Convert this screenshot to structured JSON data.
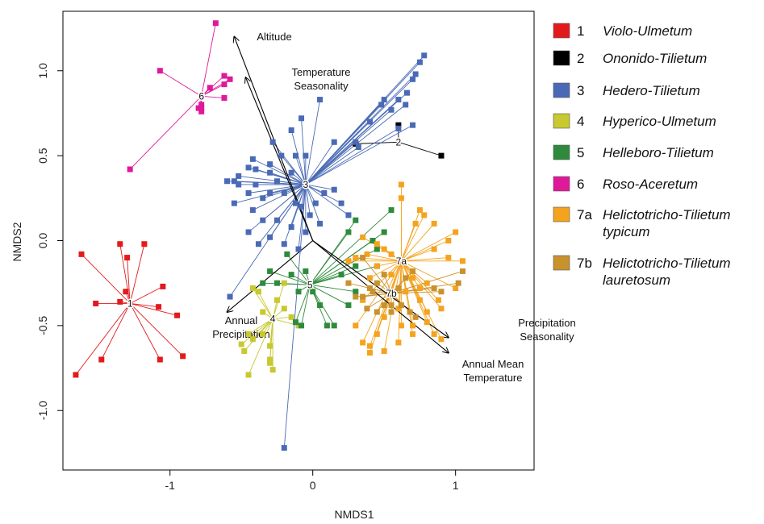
{
  "chart_data": {
    "type": "scatter",
    "title": "",
    "xlabel": "NMDS1",
    "ylabel": "NMDS2",
    "xlim": [
      -1.75,
      1.55
    ],
    "ylim": [
      -1.35,
      1.35
    ],
    "x_ticks": [
      {
        "value": -1,
        "label": "-1"
      },
      {
        "value": 0,
        "label": "0"
      },
      {
        "value": 1,
        "label": "1"
      }
    ],
    "y_ticks": [
      {
        "value": -1.0,
        "label": "-1.0"
      },
      {
        "value": -0.5,
        "label": "-0.5"
      },
      {
        "value": 0.0,
        "label": "0.0"
      },
      {
        "value": 0.5,
        "label": "0.5"
      },
      {
        "value": 1.0,
        "label": "1.0"
      }
    ],
    "grid": false,
    "legend_position": "right",
    "vectors": [
      {
        "label": [
          "Altitude"
        ],
        "end": [
          -0.55,
          1.2
        ]
      },
      {
        "label": [
          "Temperature",
          "Seasonality"
        ],
        "end": [
          -0.47,
          0.96
        ]
      },
      {
        "label": [
          "Annual",
          "Precipitation"
        ],
        "end": [
          -0.6,
          -0.42
        ]
      },
      {
        "label": [
          "Precipitation",
          "Seasonality"
        ],
        "end": [
          0.95,
          -0.57
        ]
      },
      {
        "label": [
          "Annual Mean",
          "Temperature"
        ],
        "end": [
          0.95,
          -0.66
        ]
      }
    ],
    "series": [
      {
        "id": "1",
        "name": [
          "Violo-Ulmetum"
        ],
        "color": "#e31a1c",
        "centroid": [
          -1.28,
          -0.37
        ],
        "points": [
          [
            -1.62,
            -0.08
          ],
          [
            -1.35,
            -0.02
          ],
          [
            -1.18,
            -0.02
          ],
          [
            -1.3,
            -0.1
          ],
          [
            -1.52,
            -0.37
          ],
          [
            -1.35,
            -0.36
          ],
          [
            -1.05,
            -0.27
          ],
          [
            -1.08,
            -0.39
          ],
          [
            -0.95,
            -0.44
          ],
          [
            -1.48,
            -0.7
          ],
          [
            -1.66,
            -0.79
          ],
          [
            -1.07,
            -0.7
          ],
          [
            -0.91,
            -0.68
          ],
          [
            -1.31,
            -0.3
          ]
        ]
      },
      {
        "id": "2",
        "name": [
          "Ononido-Tilietum"
        ],
        "color": "#000000",
        "centroid": [
          0.6,
          0.58
        ],
        "points": [
          [
            0.6,
            0.68
          ],
          [
            0.3,
            0.57
          ],
          [
            0.9,
            0.5
          ]
        ]
      },
      {
        "id": "3",
        "name": [
          "Hedero-Tilietum"
        ],
        "color": "#4a6ab5",
        "centroid": [
          -0.05,
          0.33
        ],
        "points": [
          [
            0.78,
            1.09
          ],
          [
            0.75,
            1.05
          ],
          [
            0.72,
            0.98
          ],
          [
            0.7,
            0.95
          ],
          [
            0.66,
            0.87
          ],
          [
            0.6,
            0.83
          ],
          [
            0.55,
            0.77
          ],
          [
            0.5,
            0.83
          ],
          [
            0.48,
            0.8
          ],
          [
            0.65,
            0.8
          ],
          [
            0.4,
            0.7
          ],
          [
            0.6,
            0.66
          ],
          [
            0.7,
            0.68
          ],
          [
            0.3,
            0.58
          ],
          [
            0.32,
            0.55
          ],
          [
            0.15,
            0.58
          ],
          [
            0.05,
            0.83
          ],
          [
            -0.08,
            0.72
          ],
          [
            -0.15,
            0.65
          ],
          [
            -0.28,
            0.58
          ],
          [
            -0.22,
            0.5
          ],
          [
            -0.12,
            0.5
          ],
          [
            -0.05,
            0.5
          ],
          [
            -0.3,
            0.45
          ],
          [
            -0.4,
            0.42
          ],
          [
            -0.42,
            0.48
          ],
          [
            -0.45,
            0.43
          ],
          [
            -0.52,
            0.38
          ],
          [
            -0.52,
            0.33
          ],
          [
            -0.4,
            0.33
          ],
          [
            -0.3,
            0.28
          ],
          [
            -0.2,
            0.28
          ],
          [
            -0.12,
            0.22
          ],
          [
            -0.08,
            0.2
          ],
          [
            -0.02,
            0.15
          ],
          [
            0.02,
            0.22
          ],
          [
            0.08,
            0.28
          ],
          [
            0.15,
            0.3
          ],
          [
            0.2,
            0.22
          ],
          [
            -0.45,
            0.28
          ],
          [
            -0.55,
            0.22
          ],
          [
            -0.42,
            0.18
          ],
          [
            -0.35,
            0.12
          ],
          [
            -0.25,
            0.12
          ],
          [
            -0.15,
            0.08
          ],
          [
            -0.05,
            0.05
          ],
          [
            0.05,
            0.1
          ],
          [
            -0.45,
            0.05
          ],
          [
            -0.38,
            -0.02
          ],
          [
            -0.3,
            0.02
          ],
          [
            -0.2,
            -0.02
          ],
          [
            -0.1,
            -0.05
          ],
          [
            -0.25,
            0.35
          ],
          [
            -0.3,
            0.4
          ],
          [
            -0.15,
            0.4
          ],
          [
            -0.55,
            0.35
          ],
          [
            -0.6,
            0.35
          ],
          [
            -0.58,
            -0.33
          ],
          [
            -0.2,
            -1.22
          ],
          [
            0.25,
            0.15
          ],
          [
            -0.35,
            0.25
          ]
        ]
      },
      {
        "id": "4",
        "name": [
          "Hyperico-Ulmetum"
        ],
        "color": "#c8c830",
        "centroid": [
          -0.28,
          -0.46
        ],
        "points": [
          [
            -0.45,
            -0.55
          ],
          [
            -0.5,
            -0.61
          ],
          [
            -0.48,
            -0.65
          ],
          [
            -0.42,
            -0.58
          ],
          [
            -0.35,
            -0.55
          ],
          [
            -0.3,
            -0.62
          ],
          [
            -0.3,
            -0.7
          ],
          [
            -0.3,
            -0.72
          ],
          [
            -0.28,
            -0.76
          ],
          [
            -0.45,
            -0.79
          ],
          [
            -0.2,
            -0.4
          ],
          [
            -0.25,
            -0.35
          ],
          [
            -0.35,
            -0.42
          ],
          [
            -0.15,
            -0.45
          ],
          [
            -0.1,
            -0.5
          ],
          [
            -0.42,
            -0.28
          ],
          [
            -0.38,
            -0.3
          ],
          [
            -0.2,
            -0.25
          ]
        ]
      },
      {
        "id": "5",
        "name": [
          "Helleboro-Tilietum"
        ],
        "color": "#2e8b3c",
        "centroid": [
          -0.02,
          -0.26
        ],
        "points": [
          [
            -0.18,
            -0.08
          ],
          [
            -0.25,
            -0.25
          ],
          [
            -0.35,
            -0.25
          ],
          [
            -0.3,
            -0.18
          ],
          [
            -0.15,
            -0.2
          ],
          [
            -0.1,
            -0.3
          ],
          [
            0.0,
            -0.3
          ],
          [
            0.05,
            -0.38
          ],
          [
            0.1,
            -0.5
          ],
          [
            0.15,
            -0.5
          ],
          [
            -0.08,
            -0.5
          ],
          [
            -0.12,
            -0.48
          ],
          [
            0.25,
            -0.38
          ],
          [
            0.3,
            -0.3
          ],
          [
            0.2,
            -0.2
          ],
          [
            0.3,
            -0.15
          ],
          [
            0.45,
            -0.05
          ],
          [
            0.5,
            0.05
          ],
          [
            0.42,
            0.0
          ],
          [
            0.55,
            0.18
          ],
          [
            0.25,
            0.05
          ],
          [
            0.3,
            0.12
          ],
          [
            0.45,
            -0.15
          ],
          [
            -0.05,
            -0.18
          ]
        ]
      },
      {
        "id": "6",
        "name": [
          "Roso-Aceretum"
        ],
        "color": "#e0189a",
        "centroid": [
          -0.78,
          0.85
        ],
        "points": [
          [
            -0.68,
            1.28
          ],
          [
            -1.07,
            1.0
          ],
          [
            -0.62,
            0.97
          ],
          [
            -0.58,
            0.95
          ],
          [
            -0.62,
            0.92
          ],
          [
            -0.72,
            0.9
          ],
          [
            -0.62,
            0.84
          ],
          [
            -0.78,
            0.8
          ],
          [
            -0.78,
            0.78
          ],
          [
            -0.78,
            0.76
          ],
          [
            -0.8,
            0.78
          ],
          [
            -1.28,
            0.42
          ]
        ]
      },
      {
        "id": "7a",
        "name": [
          "Helictotricho-Tilietum",
          "typicum"
        ],
        "color": "#f5a31e",
        "centroid": [
          0.62,
          -0.12
        ],
        "points": [
          [
            0.62,
            0.33
          ],
          [
            0.62,
            0.25
          ],
          [
            0.75,
            0.18
          ],
          [
            0.78,
            0.15
          ],
          [
            0.85,
            0.1
          ],
          [
            1.0,
            0.05
          ],
          [
            0.95,
            0.0
          ],
          [
            0.85,
            -0.05
          ],
          [
            0.95,
            -0.1
          ],
          [
            1.05,
            -0.12
          ],
          [
            0.35,
            0.02
          ],
          [
            0.45,
            -0.02
          ],
          [
            0.5,
            -0.05
          ],
          [
            0.55,
            -0.08
          ],
          [
            0.38,
            -0.08
          ],
          [
            0.3,
            -0.1
          ],
          [
            0.25,
            -0.12
          ],
          [
            0.45,
            -0.15
          ],
          [
            0.55,
            -0.2
          ],
          [
            0.4,
            -0.22
          ],
          [
            0.7,
            -0.22
          ],
          [
            0.8,
            -0.25
          ],
          [
            1.0,
            -0.28
          ],
          [
            0.88,
            -0.35
          ],
          [
            0.9,
            -0.4
          ],
          [
            0.75,
            -0.28
          ],
          [
            0.75,
            -0.35
          ],
          [
            0.65,
            -0.3
          ],
          [
            0.6,
            -0.4
          ],
          [
            0.5,
            -0.45
          ],
          [
            0.45,
            -0.55
          ],
          [
            0.3,
            -0.5
          ],
          [
            0.35,
            -0.6
          ],
          [
            0.4,
            -0.62
          ],
          [
            0.4,
            -0.66
          ],
          [
            0.62,
            -0.5
          ],
          [
            0.7,
            -0.55
          ],
          [
            0.7,
            -0.5
          ],
          [
            0.8,
            -0.48
          ],
          [
            0.9,
            -0.58
          ],
          [
            0.6,
            -0.6
          ],
          [
            0.5,
            -0.65
          ],
          [
            0.8,
            -0.42
          ],
          [
            0.85,
            -0.55
          ],
          [
            0.72,
            0.1
          ],
          [
            0.35,
            -0.35
          ]
        ]
      },
      {
        "id": "7b",
        "name": [
          "Helictotricho-Tilietum",
          "lauretosum"
        ],
        "color": "#c8922e",
        "centroid": [
          0.55,
          -0.31
        ],
        "points": [
          [
            0.25,
            -0.25
          ],
          [
            0.3,
            -0.33
          ],
          [
            0.35,
            -0.33
          ],
          [
            0.42,
            -0.3
          ],
          [
            0.45,
            -0.25
          ],
          [
            0.5,
            -0.38
          ],
          [
            0.55,
            -0.42
          ],
          [
            0.55,
            -0.38
          ],
          [
            0.38,
            -0.4
          ],
          [
            0.62,
            -0.38
          ],
          [
            0.68,
            -0.42
          ],
          [
            0.72,
            -0.45
          ],
          [
            0.6,
            -0.28
          ],
          [
            0.5,
            -0.2
          ],
          [
            0.4,
            -0.28
          ],
          [
            0.65,
            -0.22
          ],
          [
            0.7,
            -0.18
          ],
          [
            0.85,
            -0.28
          ],
          [
            1.05,
            -0.18
          ],
          [
            1.02,
            -0.25
          ],
          [
            0.9,
            -0.3
          ],
          [
            0.45,
            -0.42
          ],
          [
            0.35,
            -0.1
          ]
        ]
      }
    ]
  }
}
